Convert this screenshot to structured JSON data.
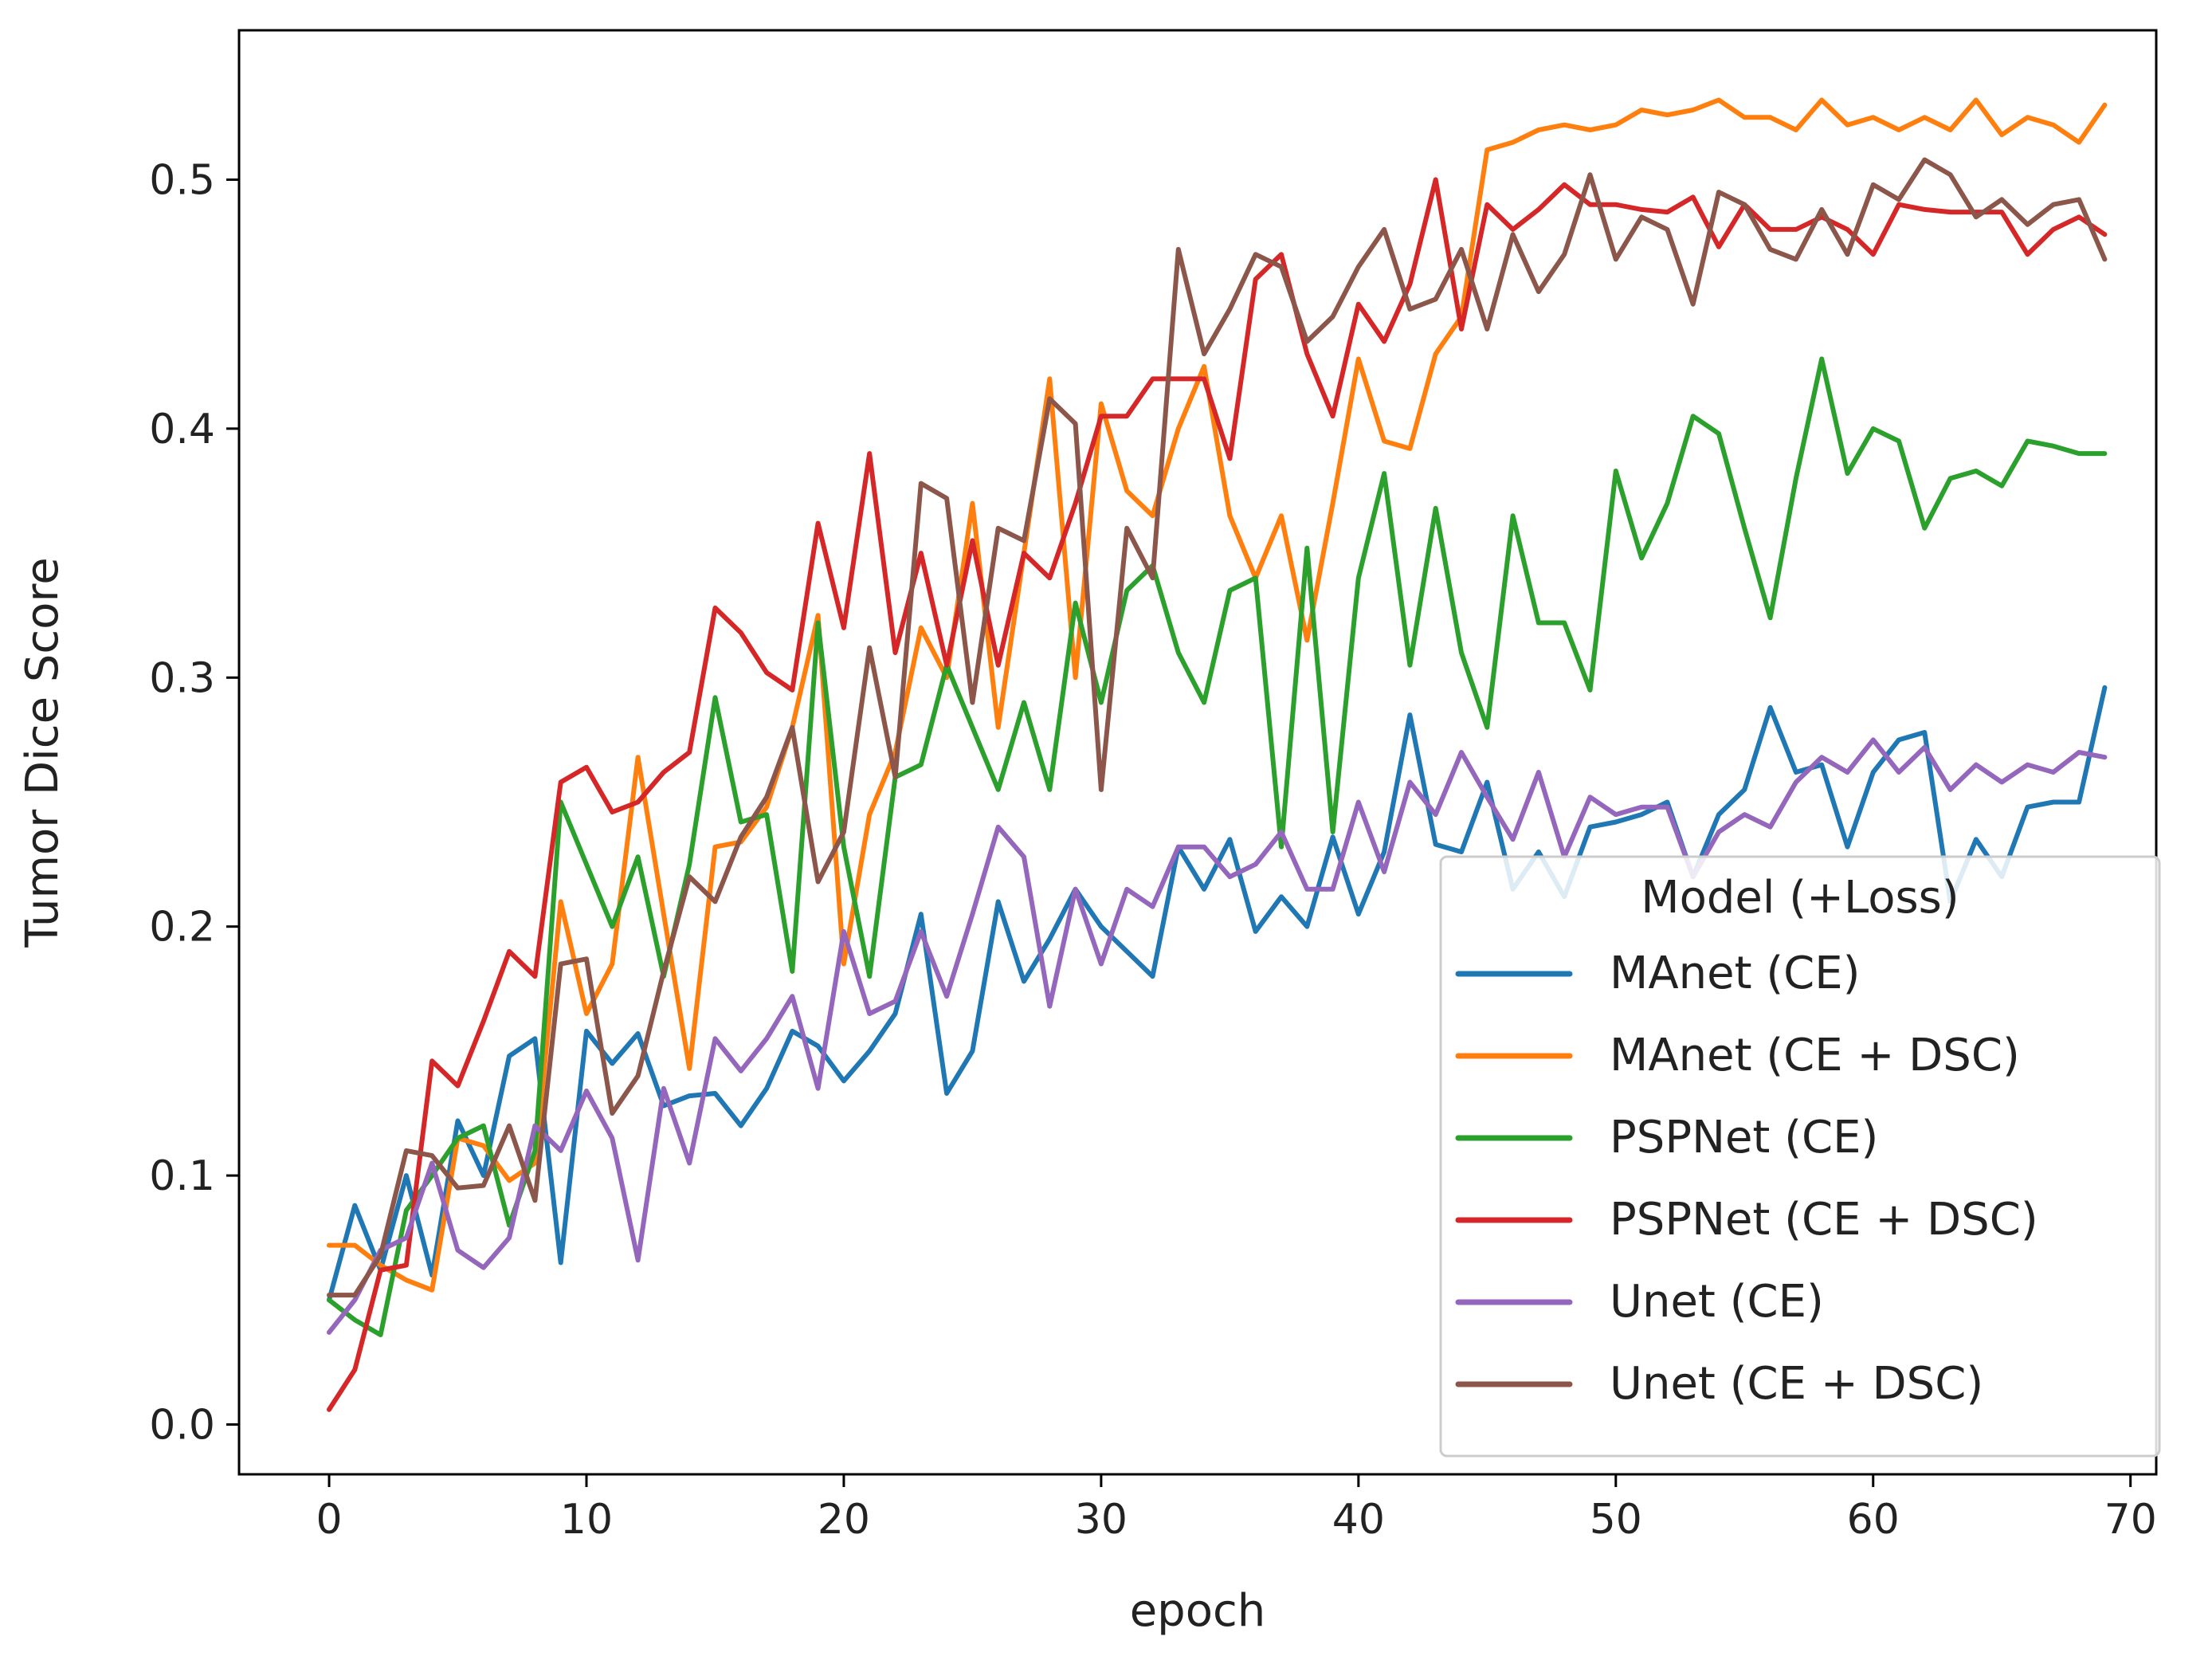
{
  "chart_data": {
    "type": "line",
    "xlabel": "epoch",
    "ylabel": "Tumor Dice Score",
    "xlim": [
      -3.5,
      71
    ],
    "ylim": [
      -0.02,
      0.56
    ],
    "xticks": [
      "0",
      "10",
      "20",
      "30",
      "40",
      "50",
      "60",
      "70"
    ],
    "yticks": [
      "0.0",
      "0.1",
      "0.2",
      "0.3",
      "0.4",
      "0.5"
    ],
    "grid": false,
    "legend": {
      "title": "Model (+Loss)",
      "position": "lower-right"
    },
    "x": [
      0,
      1,
      2,
      3,
      4,
      5,
      6,
      7,
      8,
      9,
      10,
      11,
      12,
      13,
      14,
      15,
      16,
      17,
      18,
      19,
      20,
      21,
      22,
      23,
      24,
      25,
      26,
      27,
      28,
      29,
      30,
      31,
      32,
      33,
      34,
      35,
      36,
      37,
      38,
      39,
      40,
      41,
      42,
      43,
      44,
      45,
      46,
      47,
      48,
      49,
      50,
      51,
      52,
      53,
      54,
      55,
      56,
      57,
      58,
      59,
      60,
      61,
      62,
      63,
      64,
      65,
      66,
      67,
      68,
      69
    ],
    "series": [
      {
        "name": "MAnet (CE)",
        "color": "#1f77b4",
        "values": [
          0.05,
          0.088,
          0.062,
          0.1,
          0.06,
          0.122,
          0.1,
          0.148,
          0.155,
          0.065,
          0.158,
          0.145,
          0.157,
          0.128,
          0.132,
          0.133,
          0.12,
          0.135,
          0.158,
          0.152,
          0.138,
          0.15,
          0.165,
          0.205,
          0.133,
          0.15,
          0.21,
          0.178,
          0.195,
          0.215,
          0.2,
          0.19,
          0.18,
          0.232,
          0.215,
          0.235,
          0.198,
          0.212,
          0.2,
          0.236,
          0.205,
          0.23,
          0.285,
          0.233,
          0.23,
          0.258,
          0.215,
          0.23,
          0.212,
          0.24,
          0.242,
          0.245,
          0.25,
          0.22,
          0.245,
          0.255,
          0.288,
          0.262,
          0.265,
          0.232,
          0.262,
          0.275,
          0.278,
          0.21,
          0.235,
          0.22,
          0.248,
          0.25,
          0.25,
          0.296
        ]
      },
      {
        "name": "MAnet (CE + DSC)",
        "color": "#ff7f0e",
        "values": [
          0.072,
          0.072,
          0.064,
          0.058,
          0.054,
          0.115,
          0.112,
          0.098,
          0.105,
          0.21,
          0.165,
          0.185,
          0.268,
          0.205,
          0.143,
          0.232,
          0.234,
          0.248,
          0.28,
          0.325,
          0.185,
          0.245,
          0.27,
          0.32,
          0.3,
          0.37,
          0.28,
          0.35,
          0.42,
          0.3,
          0.41,
          0.375,
          0.365,
          0.4,
          0.425,
          0.365,
          0.34,
          0.365,
          0.315,
          0.37,
          0.428,
          0.395,
          0.392,
          0.43,
          0.445,
          0.512,
          0.515,
          0.52,
          0.522,
          0.52,
          0.522,
          0.528,
          0.526,
          0.528,
          0.532,
          0.525,
          0.525,
          0.52,
          0.532,
          0.522,
          0.525,
          0.52,
          0.525,
          0.52,
          0.532,
          0.518,
          0.525,
          0.522,
          0.515,
          0.53
        ]
      },
      {
        "name": "PSPNet (CE)",
        "color": "#2ca02c",
        "values": [
          0.05,
          0.042,
          0.036,
          0.086,
          0.1,
          0.115,
          0.12,
          0.08,
          0.11,
          0.25,
          0.225,
          0.2,
          0.228,
          0.18,
          0.225,
          0.292,
          0.242,
          0.245,
          0.182,
          0.322,
          0.232,
          0.18,
          0.26,
          0.265,
          0.305,
          0.28,
          0.255,
          0.29,
          0.255,
          0.33,
          0.29,
          0.335,
          0.345,
          0.31,
          0.29,
          0.335,
          0.34,
          0.232,
          0.352,
          0.238,
          0.34,
          0.382,
          0.305,
          0.368,
          0.31,
          0.28,
          0.365,
          0.322,
          0.322,
          0.295,
          0.383,
          0.348,
          0.37,
          0.405,
          0.398,
          0.36,
          0.324,
          0.38,
          0.428,
          0.382,
          0.4,
          0.395,
          0.36,
          0.38,
          0.383,
          0.377,
          0.395,
          0.393,
          0.39,
          0.39
        ]
      },
      {
        "name": "PSPNet (CE + DSC)",
        "color": "#d62728",
        "values": [
          0.006,
          0.022,
          0.062,
          0.064,
          0.146,
          0.136,
          0.162,
          0.19,
          0.18,
          0.258,
          0.264,
          0.246,
          0.25,
          0.262,
          0.27,
          0.328,
          0.318,
          0.302,
          0.295,
          0.362,
          0.32,
          0.39,
          0.31,
          0.35,
          0.305,
          0.355,
          0.305,
          0.35,
          0.34,
          0.37,
          0.405,
          0.405,
          0.42,
          0.42,
          0.42,
          0.388,
          0.46,
          0.47,
          0.43,
          0.405,
          0.45,
          0.435,
          0.458,
          0.5,
          0.44,
          0.49,
          0.48,
          0.488,
          0.498,
          0.49,
          0.49,
          0.488,
          0.487,
          0.493,
          0.473,
          0.49,
          0.48,
          0.48,
          0.485,
          0.48,
          0.47,
          0.49,
          0.488,
          0.487,
          0.487,
          0.487,
          0.47,
          0.48,
          0.485,
          0.478
        ]
      },
      {
        "name": "Unet (CE)",
        "color": "#9467bd",
        "values": [
          0.037,
          0.05,
          0.07,
          0.075,
          0.105,
          0.07,
          0.063,
          0.075,
          0.12,
          0.11,
          0.134,
          0.115,
          0.066,
          0.135,
          0.105,
          0.155,
          0.142,
          0.155,
          0.172,
          0.135,
          0.198,
          0.165,
          0.17,
          0.198,
          0.172,
          0.205,
          0.24,
          0.228,
          0.168,
          0.215,
          0.185,
          0.215,
          0.208,
          0.232,
          0.232,
          0.22,
          0.225,
          0.238,
          0.215,
          0.215,
          0.25,
          0.222,
          0.258,
          0.245,
          0.27,
          0.252,
          0.235,
          0.262,
          0.228,
          0.252,
          0.245,
          0.248,
          0.248,
          0.22,
          0.238,
          0.245,
          0.24,
          0.258,
          0.268,
          0.262,
          0.275,
          0.262,
          0.272,
          0.255,
          0.265,
          0.258,
          0.265,
          0.262,
          0.27,
          0.268
        ]
      },
      {
        "name": "Unet (CE + DSC)",
        "color": "#8c564b",
        "values": [
          0.052,
          0.052,
          0.068,
          0.11,
          0.108,
          0.095,
          0.096,
          0.12,
          0.09,
          0.185,
          0.187,
          0.125,
          0.14,
          0.182,
          0.22,
          0.21,
          0.236,
          0.252,
          0.28,
          0.218,
          0.238,
          0.312,
          0.26,
          0.378,
          0.372,
          0.29,
          0.36,
          0.355,
          0.412,
          0.402,
          0.255,
          0.36,
          0.34,
          0.472,
          0.43,
          0.448,
          0.47,
          0.465,
          0.435,
          0.445,
          0.465,
          0.48,
          0.448,
          0.452,
          0.472,
          0.44,
          0.478,
          0.455,
          0.47,
          0.502,
          0.468,
          0.485,
          0.48,
          0.45,
          0.495,
          0.49,
          0.472,
          0.468,
          0.488,
          0.47,
          0.498,
          0.492,
          0.508,
          0.502,
          0.485,
          0.492,
          0.482,
          0.49,
          0.492,
          0.468
        ]
      }
    ]
  }
}
